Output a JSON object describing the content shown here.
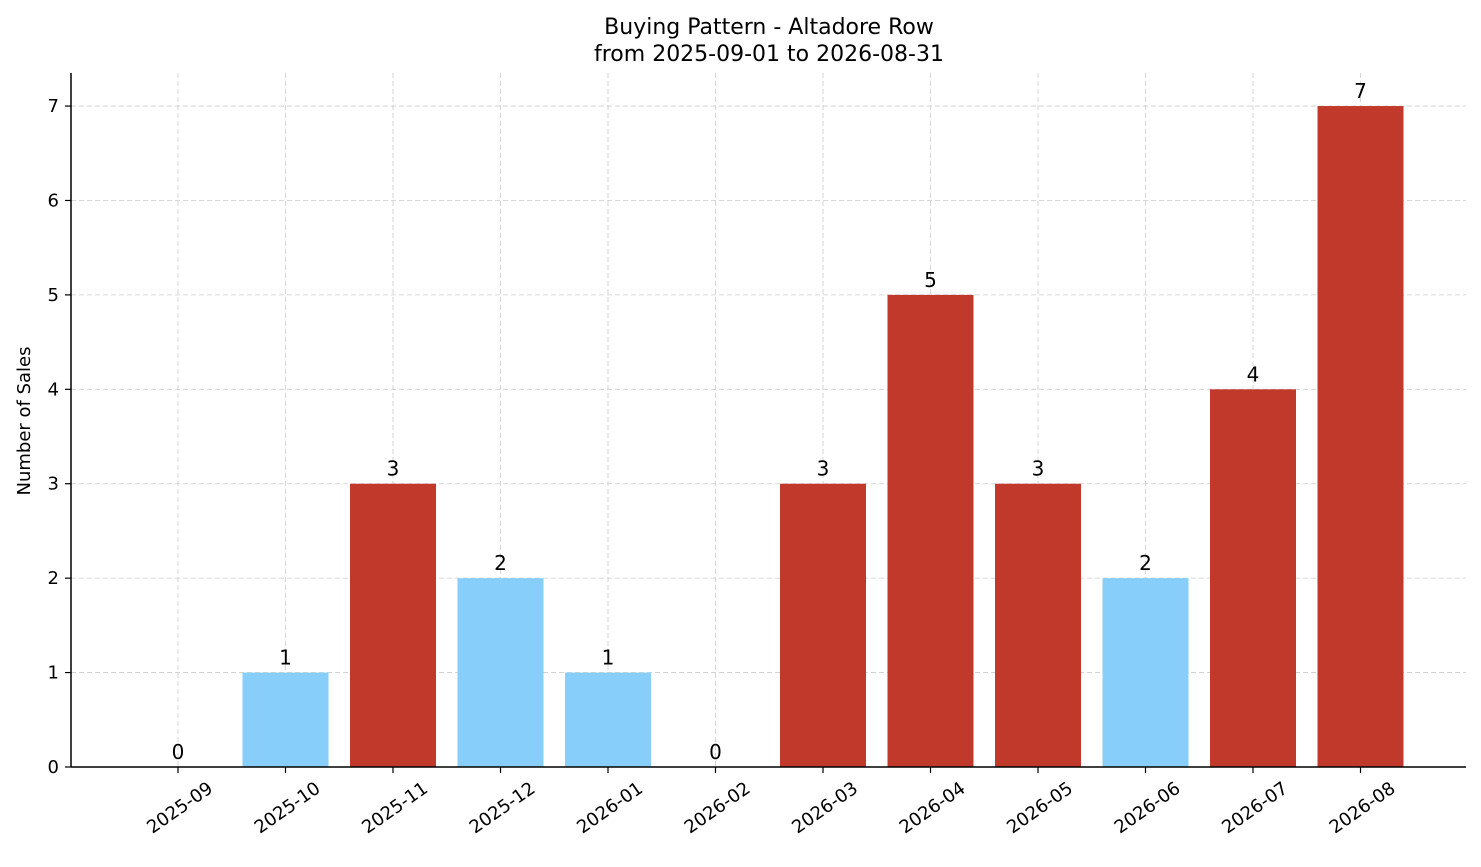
{
  "chart_data": {
    "type": "bar",
    "title": "Buying Pattern - Altadore Row",
    "subtitle": "from 2025-09-01 to 2026-08-31",
    "xlabel": "",
    "ylabel": "Number of Sales",
    "categories": [
      "2025-09",
      "2025-10",
      "2025-11",
      "2025-12",
      "2026-01",
      "2026-02",
      "2026-03",
      "2026-04",
      "2026-05",
      "2026-06",
      "2026-07",
      "2026-08"
    ],
    "values": [
      0,
      1,
      3,
      2,
      1,
      0,
      3,
      5,
      3,
      2,
      4,
      7
    ],
    "bar_colors": [
      "#87CEFA",
      "#87CEFA",
      "#C0392B",
      "#87CEFA",
      "#87CEFA",
      "#87CEFA",
      "#C0392B",
      "#C0392B",
      "#C0392B",
      "#87CEFA",
      "#C0392B",
      "#C0392B"
    ],
    "ylim": [
      0,
      7.35
    ],
    "yticks": [
      0,
      1,
      2,
      3,
      4,
      5,
      6,
      7
    ],
    "grid": true,
    "data_labels": true
  }
}
